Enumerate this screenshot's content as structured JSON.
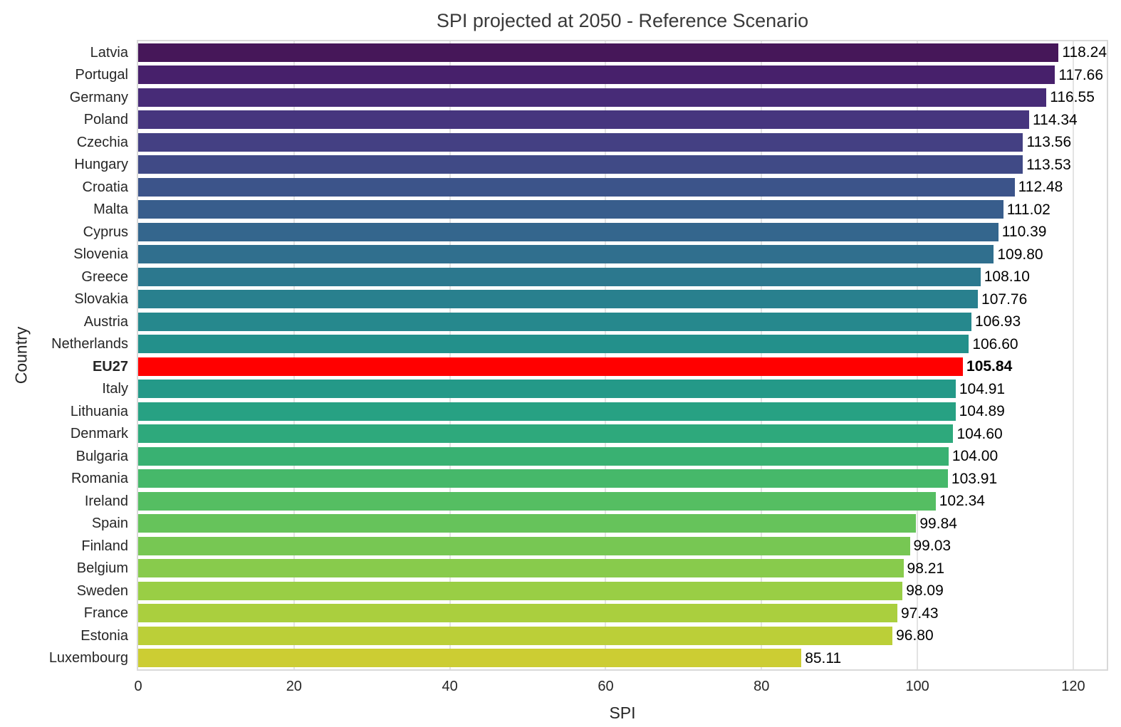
{
  "chart_data": {
    "type": "bar",
    "orientation": "horizontal",
    "title": "SPI projected at 2050 - Reference Scenario",
    "xlabel": "SPI",
    "ylabel": "Country",
    "xlim": [
      0,
      124.3
    ],
    "xticks": [
      0,
      20,
      40,
      60,
      80,
      100,
      120
    ],
    "grid": true,
    "legend": false,
    "value_label_decimals": 2,
    "highlight_category": "EU27",
    "highlight_color": "#ff0000",
    "categories": [
      "Latvia",
      "Portugal",
      "Germany",
      "Poland",
      "Czechia",
      "Hungary",
      "Croatia",
      "Malta",
      "Cyprus",
      "Slovenia",
      "Greece",
      "Slovakia",
      "Austria",
      "Netherlands",
      "EU27",
      "Italy",
      "Lithuania",
      "Denmark",
      "Bulgaria",
      "Romania",
      "Ireland",
      "Spain",
      "Finland",
      "Belgium",
      "Sweden",
      "France",
      "Estonia",
      "Luxembourg"
    ],
    "values": [
      118.24,
      117.66,
      116.55,
      114.34,
      113.56,
      113.53,
      112.48,
      111.02,
      110.39,
      109.8,
      108.1,
      107.76,
      106.93,
      106.6,
      105.84,
      104.91,
      104.89,
      104.6,
      104.0,
      103.91,
      102.34,
      99.84,
      99.03,
      98.21,
      98.09,
      97.43,
      96.8,
      85.11
    ],
    "bar_colors": [
      "#461759",
      "#47206b",
      "#472b77",
      "#46357e",
      "#444083",
      "#404a86",
      "#3c548a",
      "#385d8c",
      "#34668d",
      "#306f8e",
      "#2c788e",
      "#29808e",
      "#26888d",
      "#23908b",
      "#ff0000",
      "#249988",
      "#27a183",
      "#2ea97c",
      "#39b172",
      "#46b86a",
      "#55be62",
      "#66c35b",
      "#77c753",
      "#88cb4c",
      "#99ce45",
      "#aacf3e",
      "#bbcf38",
      "#cccd33"
    ],
    "colormap": "viridis",
    "background_color": "#ffffff",
    "gridline_color": "#e3e3e3",
    "border_color": "#d9d9d9"
  }
}
